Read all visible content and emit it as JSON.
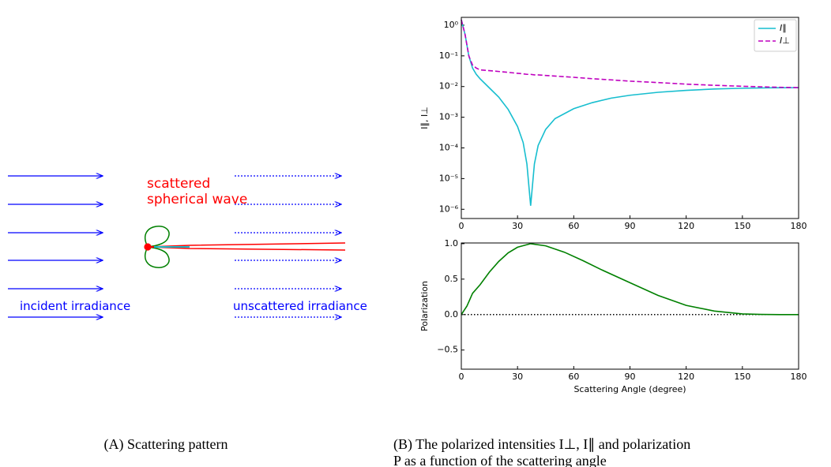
{
  "diagram": {
    "texts": [
      "scattered",
      "spherical wave",
      "incident irradiance",
      "unscattered irradiance"
    ]
  },
  "chart_data": [
    {
      "type": "line",
      "ylabel": "I∥, I⊥",
      "log_y": true,
      "legend": "upper right",
      "x": [
        0,
        2,
        4,
        6,
        8,
        10,
        15,
        20,
        25,
        30,
        33,
        35,
        37,
        39,
        41,
        45,
        50,
        60,
        70,
        80,
        90,
        105,
        120,
        135,
        150,
        165,
        180
      ],
      "series": [
        {
          "name": "I∥",
          "color": "#17becf",
          "dash": false,
          "values": [
            1.5,
            0.5,
            0.1,
            0.04,
            0.025,
            0.018,
            0.009,
            0.0045,
            0.0018,
            0.0005,
            0.00015,
            3e-05,
            1.3e-06,
            3e-05,
            0.00012,
            0.0004,
            0.0009,
            0.0019,
            0.003,
            0.0042,
            0.0052,
            0.0065,
            0.0075,
            0.0083,
            0.0088,
            0.0091,
            0.0092
          ]
        },
        {
          "name": "I⊥",
          "color": "#bf00bf",
          "dash": true,
          "values": [
            1.5,
            0.5,
            0.1,
            0.05,
            0.04,
            0.035,
            0.033,
            0.031,
            0.029,
            0.027,
            0.026,
            0.025,
            0.025,
            0.024,
            0.024,
            0.023,
            0.022,
            0.02,
            0.018,
            0.0165,
            0.015,
            0.0135,
            0.012,
            0.011,
            0.0102,
            0.0096,
            0.0092
          ]
        }
      ],
      "xlim": [
        0,
        180
      ],
      "xticks": [
        0,
        30,
        60,
        90,
        120,
        150,
        180
      ],
      "ylim": [
        5e-07,
        1.8
      ],
      "yticks": [
        {
          "value": 1e-06,
          "label": "10⁻⁶"
        },
        {
          "value": 1e-05,
          "label": "10⁻⁵"
        },
        {
          "value": 0.0001,
          "label": "10⁻⁴"
        },
        {
          "value": 0.001,
          "label": "10⁻³"
        },
        {
          "value": 0.01,
          "label": "10⁻²"
        },
        {
          "value": 0.1,
          "label": "10⁻¹"
        },
        {
          "value": 1,
          "label": "10⁰"
        }
      ]
    },
    {
      "type": "line",
      "ylabel": "Polarization",
      "xlabel": "Scattering Angle (degree)",
      "hline": 0,
      "x": [
        0,
        3,
        6,
        10,
        15,
        20,
        25,
        30,
        37,
        45,
        55,
        65,
        75,
        90,
        105,
        120,
        135,
        150,
        160,
        170,
        180
      ],
      "series": [
        {
          "color": "#008000",
          "dash": false,
          "values": [
            0,
            0.12,
            0.3,
            0.42,
            0.6,
            0.75,
            0.87,
            0.95,
            1.0,
            0.97,
            0.88,
            0.76,
            0.63,
            0.45,
            0.27,
            0.13,
            0.05,
            0.01,
            0.003,
            0,
            0
          ]
        }
      ],
      "xlim": [
        0,
        180
      ],
      "xticks": [
        0,
        30,
        60,
        90,
        120,
        150,
        180
      ],
      "ylim": [
        -0.77,
        1.01
      ],
      "yticks": [
        {
          "value": -0.5,
          "label": "−0.5"
        },
        {
          "value": 0,
          "label": "0.0"
        },
        {
          "value": 0.5,
          "label": "0.5"
        },
        {
          "value": 1,
          "label": "1.0"
        }
      ]
    }
  ],
  "captions": {
    "a": "(A) Scattering pattern",
    "b": [
      "(B) The polarized intensities I⊥, I∥ and polarization",
      "P as a function of the scattering angle"
    ]
  }
}
